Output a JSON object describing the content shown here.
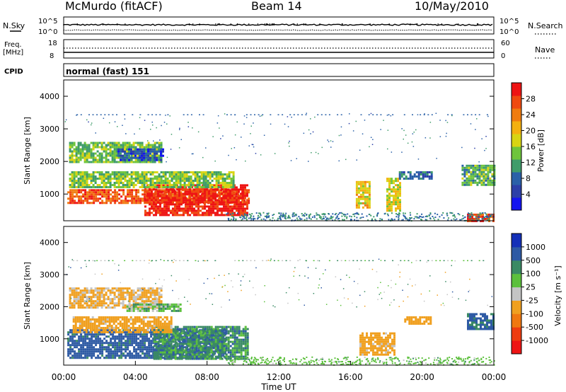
{
  "header": {
    "station": "McMurdo (fitACF)",
    "beam": "Beam 14",
    "date": "10/May/2010"
  },
  "noise_panel": {
    "left_label": "N.Sky",
    "right_label": "N.Search",
    "left_ticks": [
      "10^5",
      "10^0"
    ],
    "right_ticks": [
      "10^5",
      "10^0"
    ]
  },
  "freq_panel": {
    "left_label_1": "Freq.",
    "left_label_2": "[MHz]",
    "right_label": "Nave",
    "left_ticks": [
      "18",
      "8"
    ],
    "right_ticks": [
      "60",
      "0"
    ]
  },
  "cpid_panel": {
    "label": "CPID",
    "value": "normal (fast) 151"
  },
  "power_panel": {
    "ylabel": "Slant Range [km]",
    "colorbar_label": "Power [dB]",
    "colorbar_ticks": [
      "28",
      "24",
      "20",
      "16",
      "12",
      "8",
      "4"
    ],
    "colorbar_colors": [
      "#1414f0",
      "#2c3fa8",
      "#2a60a8",
      "#3f9c6a",
      "#6ec43c",
      "#d8d414",
      "#f4b010",
      "#f07c10",
      "#f04a10",
      "#ee1414"
    ]
  },
  "velocity_panel": {
    "ylabel": "Slant Range [km]",
    "colorbar_label": "Velocity [m s⁻¹]",
    "colorbar_ticks": [
      "1000",
      "500",
      "100",
      "25",
      "-25",
      "-100",
      "-500",
      "-1000"
    ],
    "colorbar_colors": [
      "#1430b8",
      "#2e5aa4",
      "#3a8a64",
      "#5cc03c",
      "#c4c4c4",
      "#f0a020",
      "#f07810",
      "#ee3c10",
      "#ee1414"
    ]
  },
  "xaxis": {
    "label": "Time UT",
    "ticks": [
      "00:00",
      "04:00",
      "08:00",
      "12:00",
      "16:00",
      "20:00",
      "00:00"
    ]
  },
  "chart_data": [
    {
      "type": "line",
      "title": "McMurdo (fitACF) Beam 14 10/May/2010",
      "series": [
        {
          "name": "N.Sky"
        },
        {
          "name": "N.Search"
        }
      ],
      "xlim": [
        "00:00",
        "24:00"
      ],
      "ylim": [
        "10^0",
        "10^5"
      ]
    },
    {
      "type": "line",
      "series": [
        {
          "name": "Freq. [MHz]",
          "value": 10.5
        },
        {
          "name": "Nave",
          "value": 30
        }
      ],
      "xlim": [
        "00:00",
        "24:00"
      ],
      "ylim_left": [
        8,
        18
      ],
      "ylim_right": [
        0,
        60
      ]
    },
    {
      "type": "heatmap",
      "xlabel": "Time UT",
      "ylabel": "Slant Range [km]",
      "xlim": [
        0,
        24
      ],
      "ylim": [
        180,
        4500
      ],
      "colorbar": "Power [dB]",
      "clim": [
        0,
        30
      ],
      "regions": [
        {
          "x": [
            0.2,
            10.3
          ],
          "y": [
            700,
            1150
          ],
          "level": 25
        },
        {
          "x": [
            4.5,
            10.3
          ],
          "y": [
            350,
            1300
          ],
          "level": 28
        },
        {
          "x": [
            0.3,
            9.5
          ],
          "y": [
            1200,
            1700
          ],
          "level": 14
        },
        {
          "x": [
            0.3,
            5.5
          ],
          "y": [
            2000,
            2600
          ],
          "level": 13
        },
        {
          "x": [
            3.0,
            5.5
          ],
          "y": [
            2050,
            2400
          ],
          "level": 6
        },
        {
          "x": [
            16.3,
            17.1
          ],
          "y": [
            600,
            1400
          ],
          "level": 18
        },
        {
          "x": [
            18.0,
            18.8
          ],
          "y": [
            500,
            1500
          ],
          "level": 17
        },
        {
          "x": [
            18.7,
            20.5
          ],
          "y": [
            1450,
            1700
          ],
          "level": 8
        },
        {
          "x": [
            22.2,
            24.0
          ],
          "y": [
            1300,
            1900
          ],
          "level": 12
        },
        {
          "x": [
            22.5,
            24.0
          ],
          "y": [
            200,
            400
          ],
          "level": 26
        }
      ]
    },
    {
      "type": "heatmap",
      "xlabel": "Time UT",
      "ylabel": "Slant Range [km]",
      "xlim": [
        0,
        24
      ],
      "ylim": [
        180,
        4500
      ],
      "colorbar": "Velocity [m s⁻¹]",
      "clim": [
        -1000,
        1000
      ],
      "regions": [
        {
          "x": [
            0.2,
            9.0
          ],
          "y": [
            400,
            1300
          ],
          "level": 150
        },
        {
          "x": [
            5.0,
            10.3
          ],
          "y": [
            400,
            1400
          ],
          "level": 60
        },
        {
          "x": [
            0.5,
            6.0
          ],
          "y": [
            1200,
            1700
          ],
          "level": -150
        },
        {
          "x": [
            0.3,
            5.5
          ],
          "y": [
            2000,
            2600
          ],
          "level": -120
        },
        {
          "x": [
            3.5,
            6.5
          ],
          "y": [
            1850,
            2100
          ],
          "level": 0
        },
        {
          "x": [
            16.5,
            18.5
          ],
          "y": [
            500,
            1200
          ],
          "level": -150
        },
        {
          "x": [
            19.0,
            20.5
          ],
          "y": [
            1500,
            1700
          ],
          "level": -200
        },
        {
          "x": [
            22.5,
            24.0
          ],
          "y": [
            1300,
            1800
          ],
          "level": 120
        }
      ]
    }
  ]
}
